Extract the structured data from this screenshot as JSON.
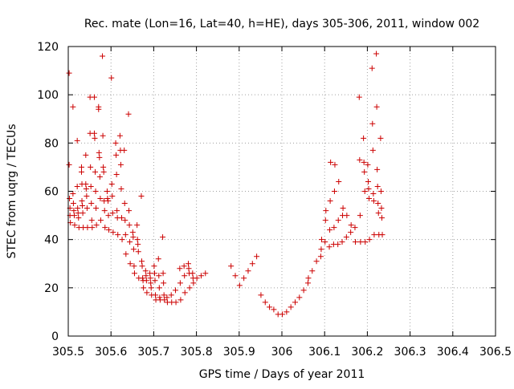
{
  "chart_data": {
    "type": "scatter",
    "title": "Rec. mate (Lon=16, Lat=40, h=HE), days 305-306, 2011, window 002",
    "xlabel": "GPS time / Days of year 2011",
    "ylabel": "STEC from uqrg / TECUs",
    "xlim": [
      305.5,
      306.5
    ],
    "ylim": [
      0,
      120
    ],
    "grid": true,
    "marker": "plus",
    "color": "#cc0000",
    "xticks": [
      {
        "value": 305.5,
        "label": "305.5"
      },
      {
        "value": 305.6,
        "label": "305.6"
      },
      {
        "value": 305.7,
        "label": "305.7"
      },
      {
        "value": 305.8,
        "label": "305.8"
      },
      {
        "value": 305.9,
        "label": "305.9"
      },
      {
        "value": 306.0,
        "label": "306"
      },
      {
        "value": 306.1,
        "label": "306.1"
      },
      {
        "value": 306.2,
        "label": "306.2"
      },
      {
        "value": 306.3,
        "label": "306.3"
      },
      {
        "value": 306.4,
        "label": "306.4"
      },
      {
        "value": 306.5,
        "label": "306.5"
      }
    ],
    "yticks": [
      {
        "value": 0,
        "label": "0"
      },
      {
        "value": 20,
        "label": "20"
      },
      {
        "value": 40,
        "label": "40"
      },
      {
        "value": 60,
        "label": "60"
      },
      {
        "value": 80,
        "label": "80"
      },
      {
        "value": 100,
        "label": "100"
      },
      {
        "value": 120,
        "label": "120"
      }
    ],
    "series": [
      {
        "points": [
          [
            305.502,
            109
          ],
          [
            305.502,
            71
          ],
          [
            305.503,
            57
          ],
          [
            305.504,
            53
          ],
          [
            305.504,
            50
          ],
          [
            305.505,
            47
          ],
          [
            305.511,
            95
          ],
          [
            305.511,
            59
          ],
          [
            305.512,
            55
          ],
          [
            305.513,
            52
          ],
          [
            305.514,
            50
          ],
          [
            305.515,
            46
          ],
          [
            305.521,
            81
          ],
          [
            305.521,
            62
          ],
          [
            305.522,
            53
          ],
          [
            305.523,
            51
          ],
          [
            305.524,
            49
          ],
          [
            305.525,
            45
          ],
          [
            305.531,
            70
          ],
          [
            305.531,
            68
          ],
          [
            305.532,
            63
          ],
          [
            305.532,
            56
          ],
          [
            305.533,
            54
          ],
          [
            305.534,
            51
          ],
          [
            305.535,
            45
          ],
          [
            305.541,
            75
          ],
          [
            305.541,
            63
          ],
          [
            305.542,
            61
          ],
          [
            305.543,
            58
          ],
          [
            305.544,
            53
          ],
          [
            305.545,
            45
          ],
          [
            305.551,
            99
          ],
          [
            305.551,
            84
          ],
          [
            305.552,
            70
          ],
          [
            305.553,
            62
          ],
          [
            305.554,
            55
          ],
          [
            305.555,
            48
          ],
          [
            305.556,
            45
          ],
          [
            305.561,
            99
          ],
          [
            305.561,
            84
          ],
          [
            305.562,
            82
          ],
          [
            305.563,
            68
          ],
          [
            305.564,
            60
          ],
          [
            305.565,
            53
          ],
          [
            305.566,
            46
          ],
          [
            305.571,
            95
          ],
          [
            305.571,
            94
          ],
          [
            305.572,
            76
          ],
          [
            305.573,
            74
          ],
          [
            305.574,
            66
          ],
          [
            305.575,
            57
          ],
          [
            305.576,
            48
          ],
          [
            305.58,
            116
          ],
          [
            305.581,
            83
          ],
          [
            305.582,
            70
          ],
          [
            305.583,
            68
          ],
          [
            305.584,
            56
          ],
          [
            305.585,
            52
          ],
          [
            305.586,
            45
          ],
          [
            305.591,
            60
          ],
          [
            305.592,
            57
          ],
          [
            305.593,
            56
          ],
          [
            305.594,
            50
          ],
          [
            305.595,
            44
          ],
          [
            305.601,
            107
          ],
          [
            305.602,
            63
          ],
          [
            305.603,
            58
          ],
          [
            305.604,
            51
          ],
          [
            305.605,
            43
          ],
          [
            305.611,
            80
          ],
          [
            305.612,
            75
          ],
          [
            305.613,
            67
          ],
          [
            305.614,
            52
          ],
          [
            305.615,
            49
          ],
          [
            305.616,
            42
          ],
          [
            305.621,
            83
          ],
          [
            305.622,
            77
          ],
          [
            305.623,
            71
          ],
          [
            305.624,
            61
          ],
          [
            305.625,
            49
          ],
          [
            305.626,
            40
          ],
          [
            305.631,
            77
          ],
          [
            305.632,
            55
          ],
          [
            305.633,
            48
          ],
          [
            305.634,
            42
          ],
          [
            305.635,
            34
          ],
          [
            305.641,
            92
          ],
          [
            305.642,
            52
          ],
          [
            305.643,
            46
          ],
          [
            305.644,
            39
          ],
          [
            305.645,
            30
          ],
          [
            305.651,
            43
          ],
          [
            305.652,
            41
          ],
          [
            305.653,
            36
          ],
          [
            305.654,
            29
          ],
          [
            305.655,
            26
          ],
          [
            305.661,
            46
          ],
          [
            305.662,
            40
          ],
          [
            305.663,
            38
          ],
          [
            305.664,
            35
          ],
          [
            305.665,
            24
          ],
          [
            305.671,
            58
          ],
          [
            305.672,
            31
          ],
          [
            305.673,
            29
          ],
          [
            305.674,
            24
          ],
          [
            305.675,
            23
          ],
          [
            305.676,
            20
          ],
          [
            305.681,
            27
          ],
          [
            305.682,
            25
          ],
          [
            305.683,
            23
          ],
          [
            305.684,
            18
          ],
          [
            305.691,
            26
          ],
          [
            305.692,
            24
          ],
          [
            305.693,
            22
          ],
          [
            305.694,
            20
          ],
          [
            305.695,
            17
          ],
          [
            305.701,
            29
          ],
          [
            305.702,
            26
          ],
          [
            305.703,
            23
          ],
          [
            305.704,
            17
          ],
          [
            305.705,
            15
          ],
          [
            305.711,
            32
          ],
          [
            305.712,
            25
          ],
          [
            305.713,
            20
          ],
          [
            305.714,
            16
          ],
          [
            305.715,
            15
          ],
          [
            305.721,
            41
          ],
          [
            305.722,
            26
          ],
          [
            305.723,
            22
          ],
          [
            305.724,
            17
          ],
          [
            305.725,
            15
          ],
          [
            305.731,
            16
          ],
          [
            305.732,
            14
          ],
          [
            305.741,
            17
          ],
          [
            305.742,
            14
          ],
          [
            305.751,
            19
          ],
          [
            305.752,
            14
          ],
          [
            305.761,
            28
          ],
          [
            305.762,
            22
          ],
          [
            305.763,
            15
          ],
          [
            305.771,
            29
          ],
          [
            305.772,
            25
          ],
          [
            305.773,
            18
          ],
          [
            305.781,
            30
          ],
          [
            305.782,
            28
          ],
          [
            305.783,
            26
          ],
          [
            305.784,
            20
          ],
          [
            305.791,
            26
          ],
          [
            305.792,
            24
          ],
          [
            305.793,
            22
          ],
          [
            305.801,
            24
          ],
          [
            305.811,
            25
          ],
          [
            305.821,
            26
          ],
          [
            305.881,
            29
          ],
          [
            305.891,
            25
          ],
          [
            305.901,
            21
          ],
          [
            305.911,
            24
          ],
          [
            305.921,
            27
          ],
          [
            305.931,
            30
          ],
          [
            305.941,
            33
          ],
          [
            305.951,
            17
          ],
          [
            305.961,
            14
          ],
          [
            305.971,
            12
          ],
          [
            305.981,
            11
          ],
          [
            305.991,
            9
          ],
          [
            306.001,
            9
          ],
          [
            306.011,
            10
          ],
          [
            306.021,
            12
          ],
          [
            306.031,
            14
          ],
          [
            306.041,
            16
          ],
          [
            306.051,
            19
          ],
          [
            306.061,
            22
          ],
          [
            306.062,
            24
          ],
          [
            306.071,
            27
          ],
          [
            306.081,
            31
          ],
          [
            306.091,
            33
          ],
          [
            306.092,
            36
          ],
          [
            306.093,
            40
          ],
          [
            306.101,
            39
          ],
          [
            306.102,
            48
          ],
          [
            306.103,
            52
          ],
          [
            306.111,
            37
          ],
          [
            306.112,
            44
          ],
          [
            306.113,
            56
          ],
          [
            306.114,
            72
          ],
          [
            306.121,
            38
          ],
          [
            306.122,
            45
          ],
          [
            306.123,
            60
          ],
          [
            306.124,
            71
          ],
          [
            306.131,
            38
          ],
          [
            306.132,
            48
          ],
          [
            306.133,
            64
          ],
          [
            306.141,
            39
          ],
          [
            306.142,
            50
          ],
          [
            306.143,
            53
          ],
          [
            306.151,
            41
          ],
          [
            306.152,
            50
          ],
          [
            306.161,
            43
          ],
          [
            306.162,
            46
          ],
          [
            306.171,
            45
          ],
          [
            306.172,
            39
          ],
          [
            306.181,
            99
          ],
          [
            306.182,
            73
          ],
          [
            306.183,
            50
          ],
          [
            306.184,
            39
          ],
          [
            306.191,
            82
          ],
          [
            306.192,
            72
          ],
          [
            306.193,
            68
          ],
          [
            306.194,
            60
          ],
          [
            306.195,
            39
          ],
          [
            306.201,
            71
          ],
          [
            306.202,
            64
          ],
          [
            306.203,
            61
          ],
          [
            306.204,
            57
          ],
          [
            306.205,
            40
          ],
          [
            306.211,
            111
          ],
          [
            306.212,
            88
          ],
          [
            306.213,
            77
          ],
          [
            306.214,
            59
          ],
          [
            306.215,
            56
          ],
          [
            306.216,
            42
          ],
          [
            306.221,
            117
          ],
          [
            306.222,
            95
          ],
          [
            306.223,
            69
          ],
          [
            306.224,
            62
          ],
          [
            306.225,
            55
          ],
          [
            306.226,
            51
          ],
          [
            306.227,
            42
          ],
          [
            306.231,
            82
          ],
          [
            306.232,
            60
          ],
          [
            306.233,
            53
          ],
          [
            306.234,
            49
          ],
          [
            306.235,
            42
          ]
        ]
      }
    ]
  }
}
